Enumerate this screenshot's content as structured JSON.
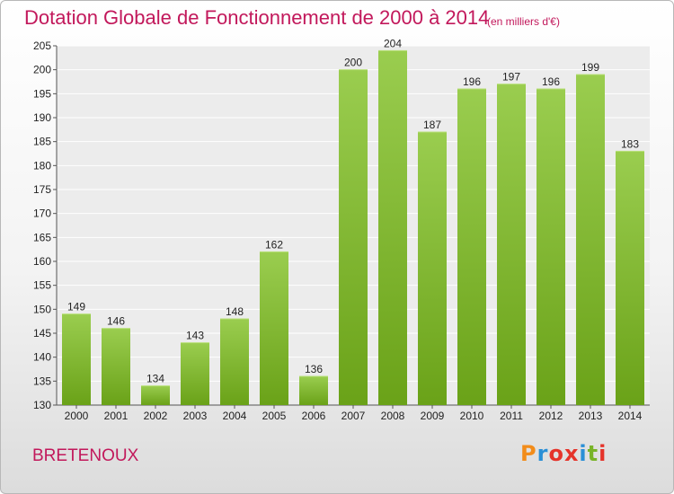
{
  "header": {
    "title": "Dotation Globale de Fonctionnement de 2000 à 2014",
    "unit": "(en milliers d'€)"
  },
  "footer": {
    "commune": "BRETENOUX",
    "logo": "Proxiti"
  },
  "colors": {
    "bar_light": "#9acd4f",
    "bar_dark": "#6aa218",
    "title": "#c2185b",
    "logo": [
      "#f28c1a",
      "#2a8fd6",
      "#e5332a",
      "#e5332a",
      "#2a8fd6",
      "#78b428",
      "#e5332a"
    ]
  },
  "chart_data": {
    "type": "bar",
    "title": "Dotation Globale de Fonctionnement de 2000 à 2014",
    "categories": [
      "2000",
      "2001",
      "2002",
      "2003",
      "2004",
      "2005",
      "2006",
      "2007",
      "2008",
      "2009",
      "2010",
      "2011",
      "2012",
      "2013",
      "2014"
    ],
    "values": [
      149,
      146,
      134,
      143,
      148,
      162,
      136,
      200,
      204,
      187,
      196,
      197,
      196,
      199,
      183
    ],
    "ylim": [
      130,
      205
    ],
    "yticks": [
      130,
      135,
      140,
      145,
      150,
      155,
      160,
      165,
      170,
      175,
      180,
      185,
      190,
      195,
      200,
      205
    ],
    "grid": true,
    "xlabel": "",
    "ylabel": ""
  }
}
